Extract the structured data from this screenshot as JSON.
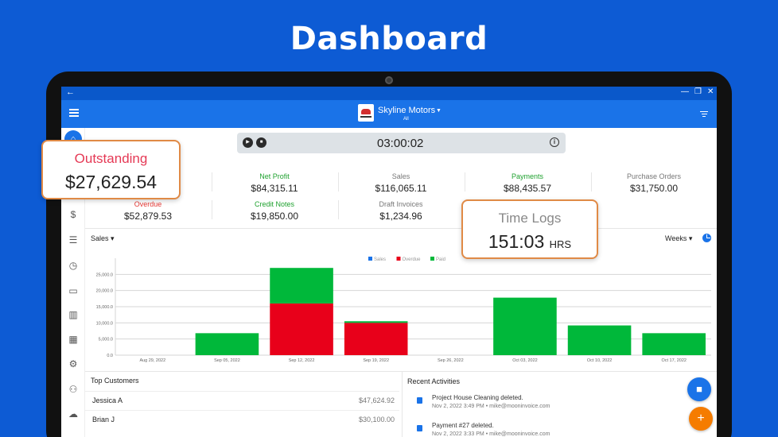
{
  "page": {
    "title": "Dashboard"
  },
  "sysbar": {
    "back": "←",
    "controls": [
      "—",
      "❐",
      "✕"
    ]
  },
  "header": {
    "company": "Skyline Motors",
    "subtitle": "All"
  },
  "timer": {
    "value": "03:00:02"
  },
  "metrics_row1": [
    {
      "label": "Net Profit",
      "value": "$84,315.11",
      "color": "#1fa12f"
    },
    {
      "label": "Sales",
      "value": "$116,065.11",
      "color": "#777777"
    },
    {
      "label": "Payments",
      "value": "$88,435.57",
      "color": "#1fa12f"
    },
    {
      "label": "Purchase Orders",
      "value": "$31,750.00",
      "color": "#777777"
    }
  ],
  "metrics_row2": [
    {
      "label": "Overdue",
      "value": "$52,879.53",
      "color": "#e53935"
    },
    {
      "label": "Credit Notes",
      "value": "$19,850.00",
      "color": "#1fa12f"
    },
    {
      "label": "Draft Invoices",
      "value": "$1,234.96",
      "color": "#777777"
    }
  ],
  "callouts": {
    "outstanding": {
      "label": "Outstanding",
      "value": "$27,629.54"
    },
    "time_logs": {
      "label": "Time Logs",
      "value": "151:03",
      "unit": "HRS"
    }
  },
  "sales": {
    "title": "Sales",
    "period": "Weeks"
  },
  "colors": {
    "sales": "#1a73e8",
    "overdue": "#e8001a",
    "paid": "#00b83a",
    "accent": "#1a73e8"
  },
  "chart_data": {
    "type": "bar",
    "stacked": true,
    "legend": [
      "Sales",
      "Overdue",
      "Paid"
    ],
    "legend_position": "top-center",
    "categories": [
      "Aug 29, 2022",
      "Sep 05, 2022",
      "Sep 12, 2022",
      "Sep 19, 2022",
      "Sep 26, 2022",
      "Oct 03, 2022",
      "Oct 10, 2022",
      "Oct 17, 2022"
    ],
    "series": [
      {
        "name": "Sales",
        "values": [
          0,
          0,
          0,
          0,
          0,
          0,
          0,
          0
        ]
      },
      {
        "name": "Overdue",
        "values": [
          0,
          0,
          16000,
          10000,
          0,
          0,
          0,
          0
        ]
      },
      {
        "name": "Paid",
        "values": [
          0,
          6800,
          11000,
          500,
          0,
          17800,
          9200,
          6800
        ]
      }
    ],
    "yticks": [
      "0.0",
      "5,000.0",
      "10,000.0",
      "15,000.0",
      "20,000.0",
      "25,000.0"
    ],
    "ylim": [
      0,
      30000
    ],
    "grid": true
  },
  "top_customers": {
    "title": "Top Customers",
    "rows": [
      {
        "name": "Jessica A",
        "amount": "$47,624.92"
      },
      {
        "name": "Brian J",
        "amount": "$30,100.00"
      }
    ]
  },
  "recent_activities": {
    "title": "Recent Activities",
    "items": [
      {
        "title": "Project House Cleaning deleted.",
        "meta": "Nov 2, 2022 3:49 PM • mike@mooninvoice.com"
      },
      {
        "title": "Payment #27 deleted.",
        "meta": "Nov 2, 2022 3:33 PM • mike@mooninvoice.com"
      }
    ]
  }
}
